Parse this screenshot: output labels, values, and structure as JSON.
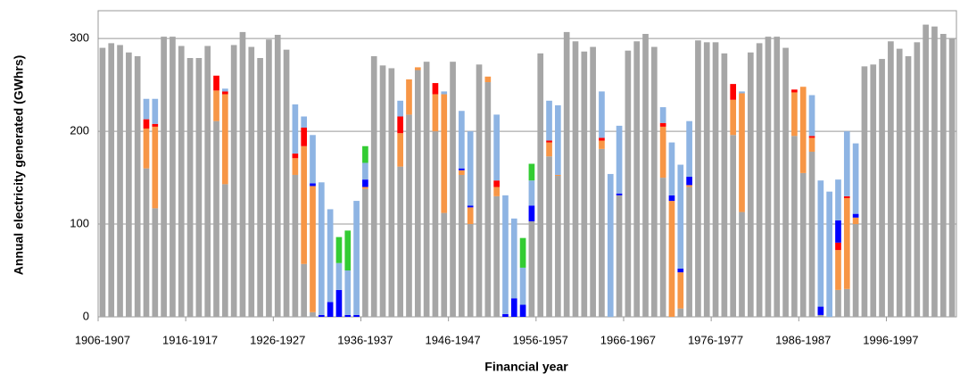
{
  "chart_data": {
    "type": "stacked_bar",
    "x_label": "Financial year",
    "y_label": "Annual electricity generated (GWhrs)",
    "categories": [
      "1906-1907",
      null,
      null,
      null,
      null,
      null,
      null,
      null,
      null,
      null,
      "1916-1917",
      null,
      null,
      null,
      null,
      null,
      null,
      null,
      null,
      null,
      "1926-1927",
      null,
      null,
      null,
      null,
      null,
      null,
      null,
      null,
      null,
      "1936-1937",
      null,
      null,
      null,
      null,
      null,
      null,
      null,
      null,
      null,
      "1946-1947",
      null,
      null,
      null,
      null,
      null,
      null,
      null,
      null,
      null,
      "1956-1957",
      null,
      null,
      null,
      null,
      null,
      null,
      null,
      null,
      null,
      "1966-1967",
      null,
      null,
      null,
      null,
      null,
      null,
      null,
      null,
      null,
      "1976-1977",
      null,
      null,
      null,
      null,
      null,
      null,
      null,
      null,
      null,
      "1986-1987",
      null,
      null,
      null,
      null,
      null,
      null,
      null,
      null,
      null,
      "1996-1997",
      null,
      null,
      null,
      null,
      null,
      null,
      null
    ],
    "series": [
      {
        "color": "#a6a6a6",
        "values": [
          290,
          295,
          293,
          285,
          281,
          160,
          117,
          302,
          302,
          292,
          279,
          279,
          292,
          211,
          143,
          293,
          307,
          291,
          279,
          299,
          304,
          288,
          153,
          57,
          5,
          0,
          0,
          0,
          0,
          0,
          138,
          281,
          271,
          268,
          162,
          218,
          266,
          275,
          200,
          112,
          275,
          153,
          100,
          272,
          253,
          130,
          0,
          0,
          0,
          103,
          284,
          173,
          152,
          307,
          297,
          286,
          291,
          181,
          0,
          131,
          287,
          297,
          305,
          291,
          150,
          0,
          9,
          140,
          298,
          296,
          296,
          284,
          196,
          113,
          285,
          295,
          302,
          302,
          290,
          195,
          155,
          178,
          2,
          0,
          29,
          30,
          100,
          270,
          272,
          278,
          297,
          289,
          281,
          296,
          315,
          313,
          305,
          300
        ]
      },
      {
        "color": "#f79646",
        "values": [
          0,
          0,
          0,
          0,
          0,
          43,
          88,
          0,
          0,
          0,
          0,
          0,
          0,
          33,
          97,
          0,
          0,
          0,
          0,
          0,
          0,
          0,
          18,
          127,
          136,
          0,
          0,
          0,
          0,
          0,
          2,
          0,
          0,
          0,
          36,
          38,
          3,
          0,
          40,
          128,
          0,
          5,
          18,
          0,
          6,
          10,
          0,
          0,
          0,
          0,
          0,
          15,
          1,
          0,
          0,
          0,
          0,
          9,
          0,
          0,
          0,
          0,
          0,
          0,
          55,
          125,
          39,
          2,
          0,
          0,
          0,
          0,
          38,
          128,
          0,
          0,
          0,
          0,
          0,
          47,
          93,
          15,
          0,
          0,
          43,
          98,
          7,
          0,
          0,
          0,
          0,
          0,
          0,
          0,
          0,
          0,
          0,
          0
        ]
      },
      {
        "color": "#ff0000",
        "values": [
          0,
          0,
          0,
          0,
          0,
          10,
          3,
          0,
          0,
          0,
          0,
          0,
          0,
          16,
          3,
          0,
          0,
          0,
          0,
          0,
          0,
          0,
          5,
          20,
          0,
          0,
          0,
          0,
          0,
          0,
          0,
          0,
          0,
          0,
          18,
          0,
          0,
          0,
          12,
          0,
          0,
          0,
          0,
          0,
          0,
          7,
          0,
          0,
          0,
          0,
          0,
          2,
          0,
          0,
          0,
          0,
          0,
          3,
          0,
          0,
          0,
          0,
          0,
          0,
          4,
          0,
          0,
          0,
          0,
          0,
          0,
          0,
          17,
          0,
          0,
          0,
          0,
          0,
          0,
          3,
          0,
          2,
          0,
          0,
          8,
          2,
          0,
          0,
          0,
          0,
          0,
          0,
          0,
          0,
          0,
          0,
          0,
          0
        ]
      },
      {
        "color": "#0000ff",
        "values": [
          0,
          0,
          0,
          0,
          0,
          0,
          0,
          0,
          0,
          0,
          0,
          0,
          0,
          0,
          0,
          0,
          0,
          0,
          0,
          0,
          0,
          0,
          0,
          0,
          3,
          2,
          16,
          29,
          2,
          2,
          8,
          0,
          0,
          0,
          0,
          0,
          0,
          0,
          0,
          0,
          0,
          2,
          2,
          0,
          0,
          0,
          3,
          20,
          13,
          17,
          0,
          0,
          0,
          0,
          0,
          0,
          0,
          0,
          0,
          2,
          0,
          0,
          0,
          0,
          0,
          6,
          4,
          9,
          0,
          0,
          0,
          0,
          0,
          0,
          0,
          0,
          0,
          0,
          0,
          0,
          0,
          0,
          9,
          0,
          24,
          0,
          4,
          0,
          0,
          0,
          0,
          0,
          0,
          0,
          0,
          0,
          0,
          0
        ]
      },
      {
        "color": "#8eb4e3",
        "values": [
          0,
          0,
          0,
          0,
          0,
          22,
          27,
          0,
          0,
          0,
          0,
          0,
          0,
          0,
          3,
          0,
          0,
          0,
          0,
          0,
          0,
          0,
          53,
          12,
          52,
          143,
          100,
          29,
          48,
          123,
          18,
          0,
          0,
          0,
          17,
          0,
          0,
          0,
          0,
          3,
          0,
          62,
          80,
          0,
          0,
          71,
          128,
          86,
          40,
          27,
          0,
          43,
          75,
          0,
          0,
          0,
          0,
          50,
          154,
          73,
          0,
          0,
          0,
          0,
          17,
          57,
          112,
          60,
          0,
          0,
          0,
          0,
          0,
          2,
          0,
          0,
          0,
          0,
          0,
          0,
          0,
          44,
          136,
          135,
          44,
          70,
          76,
          0,
          0,
          0,
          0,
          0,
          0,
          0,
          0,
          0,
          0,
          0
        ]
      },
      {
        "color": "#33cc33",
        "values": [
          0,
          0,
          0,
          0,
          0,
          0,
          0,
          0,
          0,
          0,
          0,
          0,
          0,
          0,
          0,
          0,
          0,
          0,
          0,
          0,
          0,
          0,
          0,
          0,
          0,
          0,
          0,
          28,
          43,
          0,
          18,
          0,
          0,
          0,
          0,
          0,
          0,
          0,
          0,
          0,
          0,
          0,
          0,
          0,
          0,
          0,
          0,
          0,
          32,
          18,
          0,
          0,
          0,
          0,
          0,
          0,
          0,
          0,
          0,
          0,
          0,
          0,
          0,
          0,
          0,
          0,
          0,
          0,
          0,
          0,
          0,
          0,
          0,
          0,
          0,
          0,
          0,
          0,
          0,
          0,
          0,
          0,
          0,
          0,
          0,
          0,
          0,
          0,
          0,
          0,
          0,
          0,
          0,
          0,
          0,
          0,
          0,
          0
        ]
      }
    ],
    "ylim": [
      0,
      330
    ],
    "yticks": [
      0,
      100,
      200,
      300
    ],
    "grid": true
  }
}
